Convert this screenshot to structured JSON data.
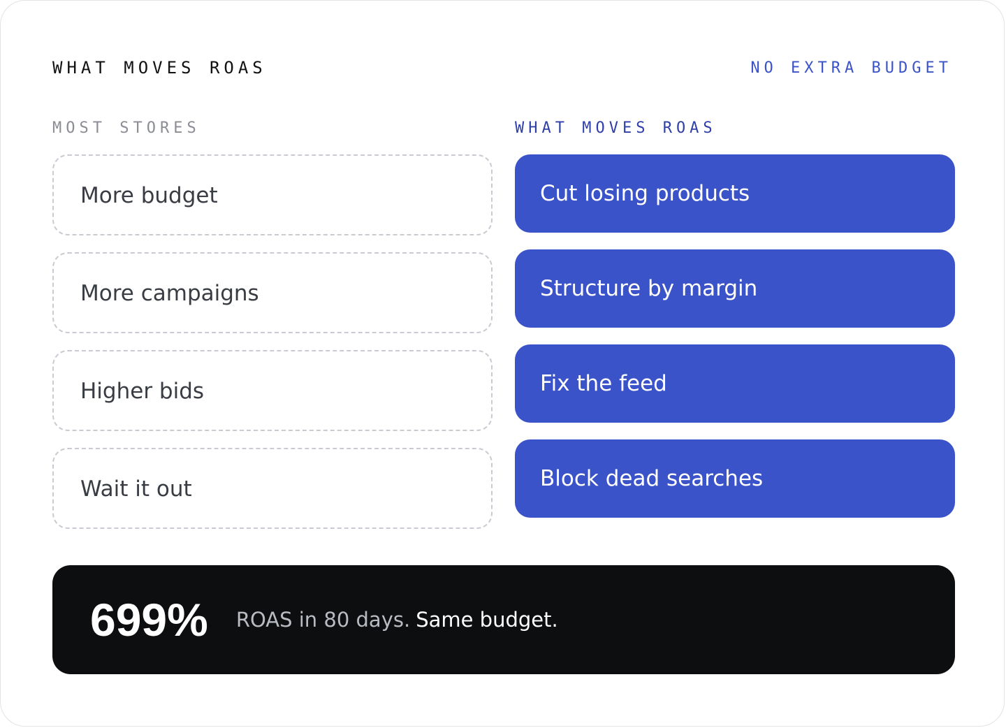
{
  "header": {
    "title": "WHAT MOVES ROAS",
    "tag": "NO EXTRA BUDGET"
  },
  "columns": {
    "left": {
      "label": "MOST STORES",
      "items": [
        "More budget",
        "More campaigns",
        "Higher bids",
        "Wait it out"
      ]
    },
    "right": {
      "label": "WHAT MOVES ROAS",
      "items": [
        "Cut losing products",
        "Structure by margin",
        "Fix the feed",
        "Block dead searches"
      ]
    }
  },
  "result": {
    "value": "699%",
    "description": "ROAS in 80 days.",
    "emphasis": "Same budget."
  },
  "colors": {
    "accent": "#3b53c8",
    "accent_label": "#2f3fa8",
    "muted_label": "#8b8d94",
    "dark_panel": "#0d0e10",
    "dashed_border": "#c9cbd2"
  }
}
